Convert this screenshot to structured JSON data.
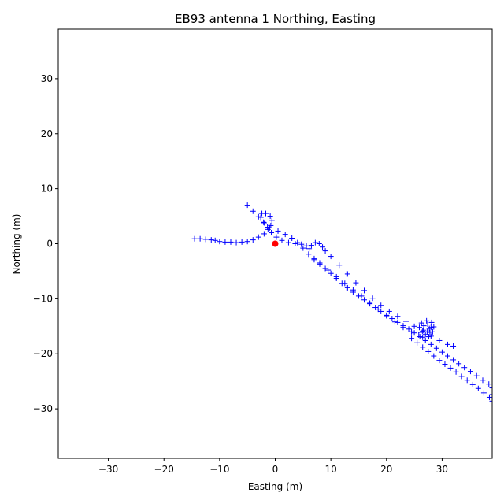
{
  "chart_data": {
    "type": "scatter",
    "title": "EB93 antenna 1 Northing, Easting",
    "xlabel": "Easting (m)",
    "ylabel": "Northing (m)",
    "xlim": [
      -39,
      39
    ],
    "ylim": [
      -39,
      39
    ],
    "xticks": [
      -30,
      -20,
      -10,
      0,
      10,
      20,
      30
    ],
    "yticks": [
      -30,
      -20,
      -10,
      0,
      10,
      20,
      30
    ],
    "xtick_labels": [
      "−30",
      "−20",
      "−10",
      "0",
      "10",
      "20",
      "30"
    ],
    "ytick_labels": [
      "−30",
      "−20",
      "−10",
      "0",
      "10",
      "20",
      "30"
    ],
    "grid": false,
    "series": [
      {
        "marker": "plus",
        "color": "#0000ff",
        "points": [
          [
            -14.5,
            0.9
          ],
          [
            -13.5,
            0.9
          ],
          [
            -12.5,
            0.8
          ],
          [
            -11.5,
            0.7
          ],
          [
            -10.8,
            0.6
          ],
          [
            -10,
            0.4
          ],
          [
            -9,
            0.3
          ],
          [
            -8,
            0.3
          ],
          [
            -7,
            0.2
          ],
          [
            -6,
            0.3
          ],
          [
            -5,
            0.4
          ],
          [
            -4,
            0.7
          ],
          [
            -3,
            1.2
          ],
          [
            -2,
            1.8
          ],
          [
            -1.3,
            2.6
          ],
          [
            -0.8,
            3.3
          ],
          [
            -0.6,
            4.2
          ],
          [
            -0.9,
            5.0
          ],
          [
            -1.7,
            5.5
          ],
          [
            -2.4,
            5.5
          ],
          [
            -2.6,
            4.8
          ],
          [
            -2.1,
            3.9
          ],
          [
            -1.4,
            3.0
          ],
          [
            -0.7,
            2.0
          ],
          [
            0.2,
            1.2
          ],
          [
            1.2,
            0.6
          ],
          [
            2.4,
            0.2
          ],
          [
            3.6,
            0.0
          ],
          [
            4.7,
            -0.1
          ],
          [
            5.6,
            -0.4
          ],
          [
            6.1,
            -0.9
          ],
          [
            6.5,
            -0.3
          ],
          [
            7.2,
            0.2
          ],
          [
            7.9,
            0.0
          ],
          [
            8.5,
            -0.6
          ],
          [
            9.0,
            -1.3
          ],
          [
            10.0,
            -2.3
          ],
          [
            11.5,
            -3.9
          ],
          [
            13.0,
            -5.5
          ],
          [
            14.5,
            -7.1
          ],
          [
            16.0,
            -8.5
          ],
          [
            17.5,
            -9.9
          ],
          [
            19.0,
            -11.2
          ],
          [
            20.5,
            -12.3
          ],
          [
            22.0,
            -13.2
          ],
          [
            23.5,
            -14.1
          ],
          [
            25.0,
            -15.0
          ],
          [
            26.5,
            -15.9
          ],
          [
            28.0,
            -16.8
          ],
          [
            29.5,
            -17.6
          ],
          [
            31.0,
            -18.3
          ],
          [
            32.0,
            -18.6
          ],
          [
            -5.0,
            7.0
          ],
          [
            -4.0,
            5.9
          ],
          [
            -3.0,
            4.9
          ],
          [
            -2.0,
            3.8
          ],
          [
            -1.0,
            2.9
          ],
          [
            0.5,
            2.3
          ],
          [
            1.8,
            1.7
          ],
          [
            3.0,
            1.0
          ],
          [
            4.0,
            0.2
          ],
          [
            5.0,
            -0.8
          ],
          [
            6.0,
            -1.9
          ],
          [
            7.0,
            -2.7
          ],
          [
            8.0,
            -3.5
          ],
          [
            9.5,
            -4.8
          ],
          [
            11.0,
            -6.0
          ],
          [
            12.5,
            -7.2
          ],
          [
            14.0,
            -8.4
          ],
          [
            15.5,
            -9.5
          ],
          [
            17.0,
            -10.8
          ],
          [
            18.5,
            -11.9
          ],
          [
            20.0,
            -13.1
          ],
          [
            21.5,
            -14.2
          ],
          [
            23.0,
            -15.2
          ],
          [
            24.5,
            -16.0
          ],
          [
            25.8,
            -16.6
          ],
          [
            26.5,
            -17.0
          ],
          [
            27.6,
            -16.9
          ],
          [
            28.3,
            -16.0
          ],
          [
            28.5,
            -15.1
          ],
          [
            28.1,
            -14.3
          ],
          [
            27.2,
            -14.0
          ],
          [
            26.3,
            -14.4
          ],
          [
            25.9,
            -15.2
          ],
          [
            26.2,
            -16.1
          ],
          [
            27.0,
            -16.5
          ],
          [
            27.8,
            -16.1
          ],
          [
            28.0,
            -15.2
          ],
          [
            27.4,
            -14.6
          ],
          [
            26.7,
            -14.9
          ],
          [
            26.6,
            -15.7
          ],
          [
            27.3,
            -16.0
          ],
          [
            27.7,
            -15.4
          ],
          [
            24.5,
            -17.2
          ],
          [
            25.5,
            -18.0
          ],
          [
            26.5,
            -18.8
          ],
          [
            27.5,
            -19.6
          ],
          [
            28.5,
            -20.4
          ],
          [
            29.5,
            -21.2
          ],
          [
            30.5,
            -21.9
          ],
          [
            31.5,
            -22.6
          ],
          [
            32.5,
            -23.3
          ],
          [
            33.5,
            -24.1
          ],
          [
            34.5,
            -24.8
          ],
          [
            35.5,
            -25.6
          ],
          [
            36.5,
            -26.3
          ],
          [
            37.5,
            -27.1
          ],
          [
            38.5,
            -27.9
          ],
          [
            39,
            -28.6
          ],
          [
            39,
            -27.4
          ],
          [
            39,
            -26.2
          ],
          [
            38.4,
            -25.5
          ],
          [
            37.3,
            -24.8
          ],
          [
            36.2,
            -24.0
          ],
          [
            35.1,
            -23.2
          ],
          [
            34.0,
            -22.5
          ],
          [
            33.0,
            -21.8
          ],
          [
            32.0,
            -21.1
          ],
          [
            31.0,
            -20.4
          ],
          [
            30.0,
            -19.7
          ],
          [
            29.0,
            -19.0
          ],
          [
            28.0,
            -18.3
          ],
          [
            27.0,
            -17.6
          ],
          [
            26.0,
            -16.9
          ],
          [
            25.0,
            -16.2
          ],
          [
            24.0,
            -15.5
          ],
          [
            23.0,
            -14.9
          ],
          [
            22.0,
            -14.3
          ],
          [
            21.0,
            -13.6
          ],
          [
            20.0,
            -13.0
          ],
          [
            19.0,
            -12.3
          ],
          [
            18.0,
            -11.6
          ],
          [
            17.0,
            -10.9
          ],
          [
            16.0,
            -10.2
          ],
          [
            15.0,
            -9.5
          ],
          [
            14.0,
            -8.8
          ],
          [
            13.0,
            -8.0
          ],
          [
            12.0,
            -7.2
          ],
          [
            11.0,
            -6.3
          ],
          [
            10.0,
            -5.4
          ],
          [
            9.0,
            -4.5
          ],
          [
            8.0,
            -3.7
          ],
          [
            7.0,
            -2.9
          ]
        ]
      },
      {
        "marker": "circle",
        "color": "#ff0000",
        "points": [
          [
            0,
            0
          ]
        ]
      }
    ]
  }
}
